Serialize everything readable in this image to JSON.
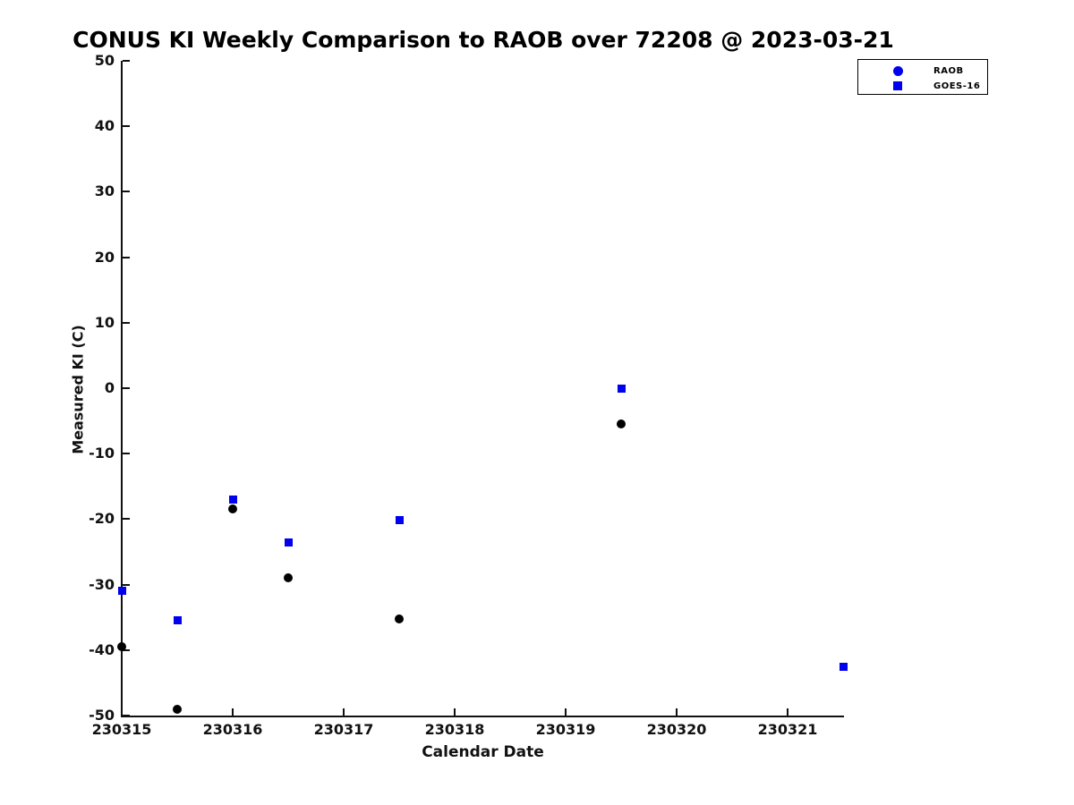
{
  "chart_data": {
    "type": "scatter",
    "title": "CONUS KI Weekly Comparison to RAOB over 72208 @ 2023-03-21",
    "xlabel": "Calendar Date",
    "ylabel": "Measured KI (C)",
    "xlim": [
      230315,
      230321.51
    ],
    "ylim": [
      -50,
      50
    ],
    "x_ticks": [
      230315,
      230316,
      230317,
      230318,
      230319,
      230320,
      230321
    ],
    "y_ticks": [
      50,
      40,
      30,
      20,
      10,
      0,
      -10,
      -20,
      -30,
      -40,
      -50
    ],
    "grid": false,
    "legend": {
      "position": "top-right",
      "entries": [
        {
          "label": "RAOB",
          "marker": "circle",
          "marker_color": "#0000EE"
        },
        {
          "label": "GOES-16",
          "marker": "square",
          "marker_color": "#0000EE"
        }
      ]
    },
    "series": [
      {
        "name": "RAOB",
        "marker": "circle",
        "color": "#000000",
        "points": [
          {
            "x": 230315.0,
            "y": -39.5
          },
          {
            "x": 230315.5,
            "y": -49.0
          },
          {
            "x": 230316.0,
            "y": -18.5
          },
          {
            "x": 230316.5,
            "y": -29.0
          },
          {
            "x": 230317.5,
            "y": -35.2
          },
          {
            "x": 230319.5,
            "y": -5.5
          }
        ]
      },
      {
        "name": "GOES-16",
        "marker": "square",
        "color": "#0000EE",
        "points": [
          {
            "x": 230315.0,
            "y": -31.0
          },
          {
            "x": 230315.5,
            "y": -35.5
          },
          {
            "x": 230316.0,
            "y": -17.0
          },
          {
            "x": 230316.5,
            "y": -23.5
          },
          {
            "x": 230317.5,
            "y": -20.2
          },
          {
            "x": 230319.5,
            "y": 0.0
          },
          {
            "x": 230321.5,
            "y": -42.5
          }
        ]
      }
    ],
    "text_color": "#111111",
    "background_color": "#ffffff"
  }
}
